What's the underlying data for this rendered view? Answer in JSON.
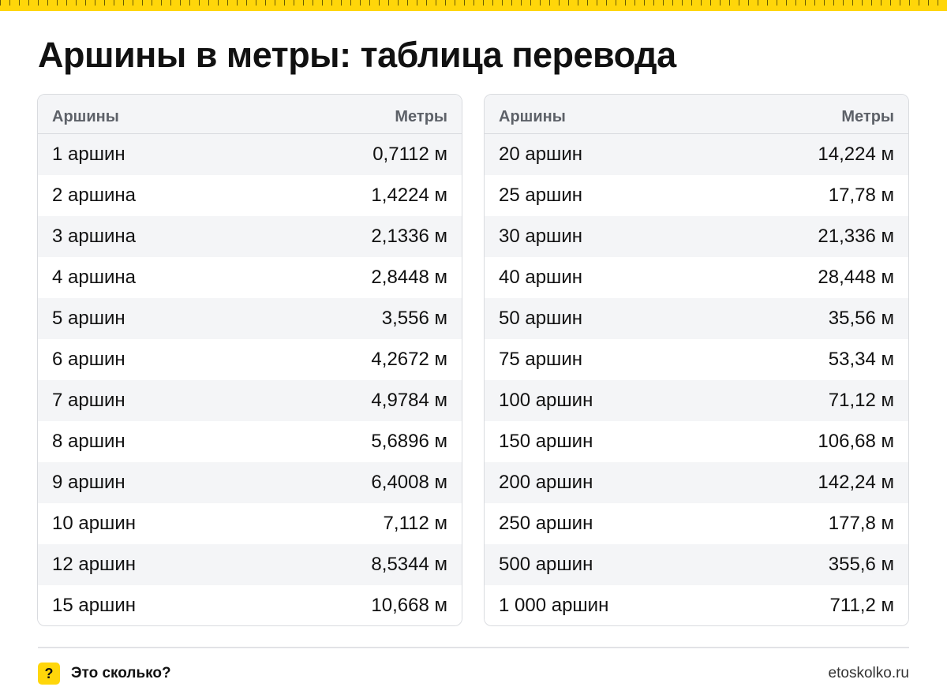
{
  "title": "Аршины в метры: таблица перевода",
  "colors": {
    "accent": "#ffd60a",
    "row_stripe": "#f4f5f7",
    "border": "#d9dbdf"
  },
  "tables": [
    {
      "header": {
        "col1": "Аршины",
        "col2": "Метры"
      },
      "rows": [
        {
          "from": "1 аршин",
          "to": "0,7112 м"
        },
        {
          "from": "2 аршина",
          "to": "1,4224 м"
        },
        {
          "from": "3 аршина",
          "to": "2,1336 м"
        },
        {
          "from": "4 аршина",
          "to": "2,8448 м"
        },
        {
          "from": "5 аршин",
          "to": "3,556 м"
        },
        {
          "from": "6 аршин",
          "to": "4,2672 м"
        },
        {
          "from": "7 аршин",
          "to": "4,9784 м"
        },
        {
          "from": "8 аршин",
          "to": "5,6896 м"
        },
        {
          "from": "9 аршин",
          "to": "6,4008 м"
        },
        {
          "from": "10 аршин",
          "to": "7,112 м"
        },
        {
          "from": "12 аршин",
          "to": "8,5344 м"
        },
        {
          "from": "15 аршин",
          "to": "10,668 м"
        }
      ]
    },
    {
      "header": {
        "col1": "Аршины",
        "col2": "Метры"
      },
      "rows": [
        {
          "from": "20 аршин",
          "to": "14,224 м"
        },
        {
          "from": "25 аршин",
          "to": "17,78 м"
        },
        {
          "from": "30 аршин",
          "to": "21,336 м"
        },
        {
          "from": "40 аршин",
          "to": "28,448 м"
        },
        {
          "from": "50 аршин",
          "to": "35,56 м"
        },
        {
          "from": "75 аршин",
          "to": "53,34 м"
        },
        {
          "from": "100 аршин",
          "to": "71,12 м"
        },
        {
          "from": "150 аршин",
          "to": "106,68 м"
        },
        {
          "from": "200 аршин",
          "to": "142,24 м"
        },
        {
          "from": "250 аршин",
          "to": "177,8 м"
        },
        {
          "from": "500 аршин",
          "to": "355,6 м"
        },
        {
          "from": "1 000 аршин",
          "to": "711,2 м"
        }
      ]
    }
  ],
  "footer": {
    "brand_icon": "question-mark-icon",
    "brand_symbol": "?",
    "brand_name": "Это сколько?",
    "site": "etoskolko.ru"
  }
}
